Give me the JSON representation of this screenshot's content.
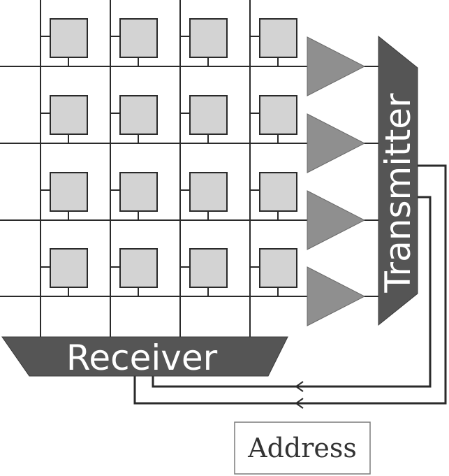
{
  "labels": {
    "receiver": "Receiver",
    "transmitter": "Transmitter",
    "address": "Address"
  },
  "grid": {
    "rows": 4,
    "columns": 4
  },
  "colors": {
    "cell_fill": "#d3d3d3",
    "amplifier_fill": "#8f8f8f",
    "block_fill": "#555555",
    "wire": "#2a2a2a"
  }
}
